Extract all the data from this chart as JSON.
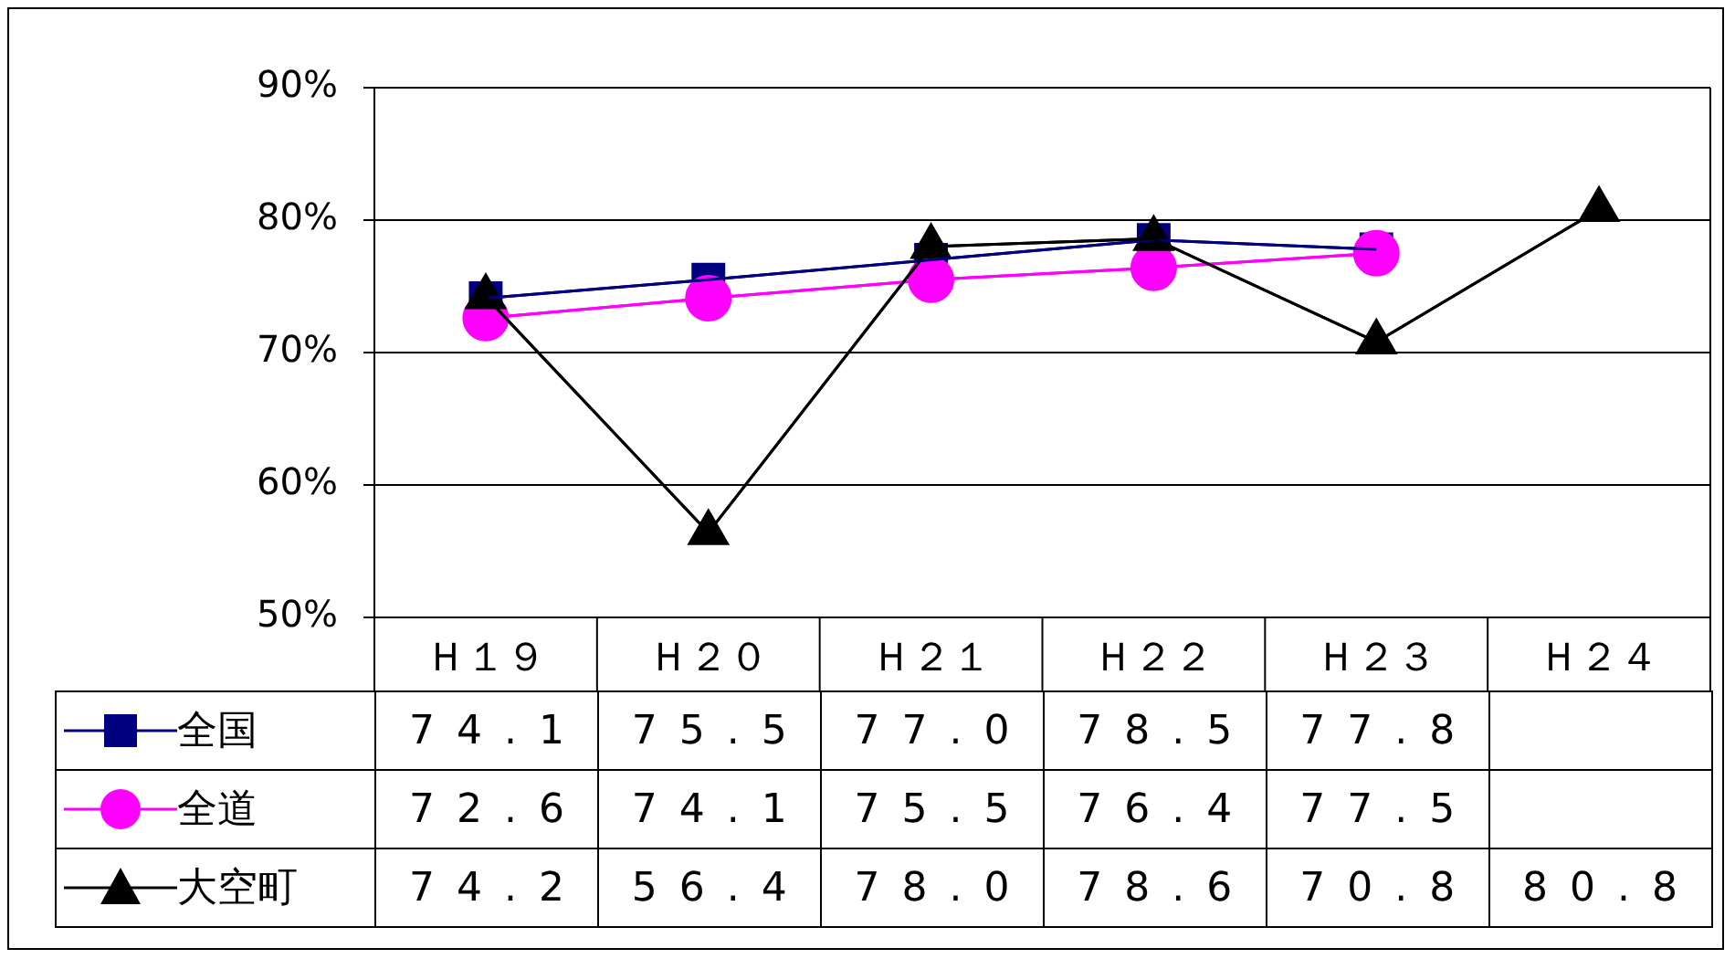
{
  "chart_data": {
    "type": "line",
    "categories": [
      "Ｈ１９",
      "Ｈ２０",
      "Ｈ２１",
      "Ｈ２２",
      "Ｈ２３",
      "Ｈ２４"
    ],
    "ylim": [
      50,
      90
    ],
    "yticks": [
      {
        "value": 50,
        "label": "50%"
      },
      {
        "value": 60,
        "label": "60%"
      },
      {
        "value": 70,
        "label": "70%"
      },
      {
        "value": 80,
        "label": "80%"
      },
      {
        "value": 90,
        "label": "90%"
      }
    ],
    "grid": "y",
    "legend": "bottom left",
    "series": [
      {
        "name": "全国",
        "color": "#000080",
        "marker": "square",
        "values": [
          74.1,
          75.5,
          77.0,
          78.5,
          77.8,
          null
        ],
        "value_labels": [
          "74.1",
          "75.5",
          "77.0",
          "78.5",
          "77.8",
          null
        ]
      },
      {
        "name": "全道",
        "color": "#ff00ff",
        "marker": "circle",
        "values": [
          72.6,
          74.1,
          75.5,
          76.4,
          77.5,
          null
        ],
        "value_labels": [
          "72.6",
          "74.1",
          "75.5",
          "76.4",
          "77.5",
          null
        ]
      },
      {
        "name": "大空町",
        "color": "#000000",
        "marker": "triangle",
        "values": [
          74.2,
          56.4,
          78.0,
          78.6,
          70.8,
          80.8
        ],
        "value_labels": [
          "74.2",
          "56.4",
          "78.0",
          "78.6",
          "70.8",
          "80.8"
        ]
      }
    ]
  }
}
